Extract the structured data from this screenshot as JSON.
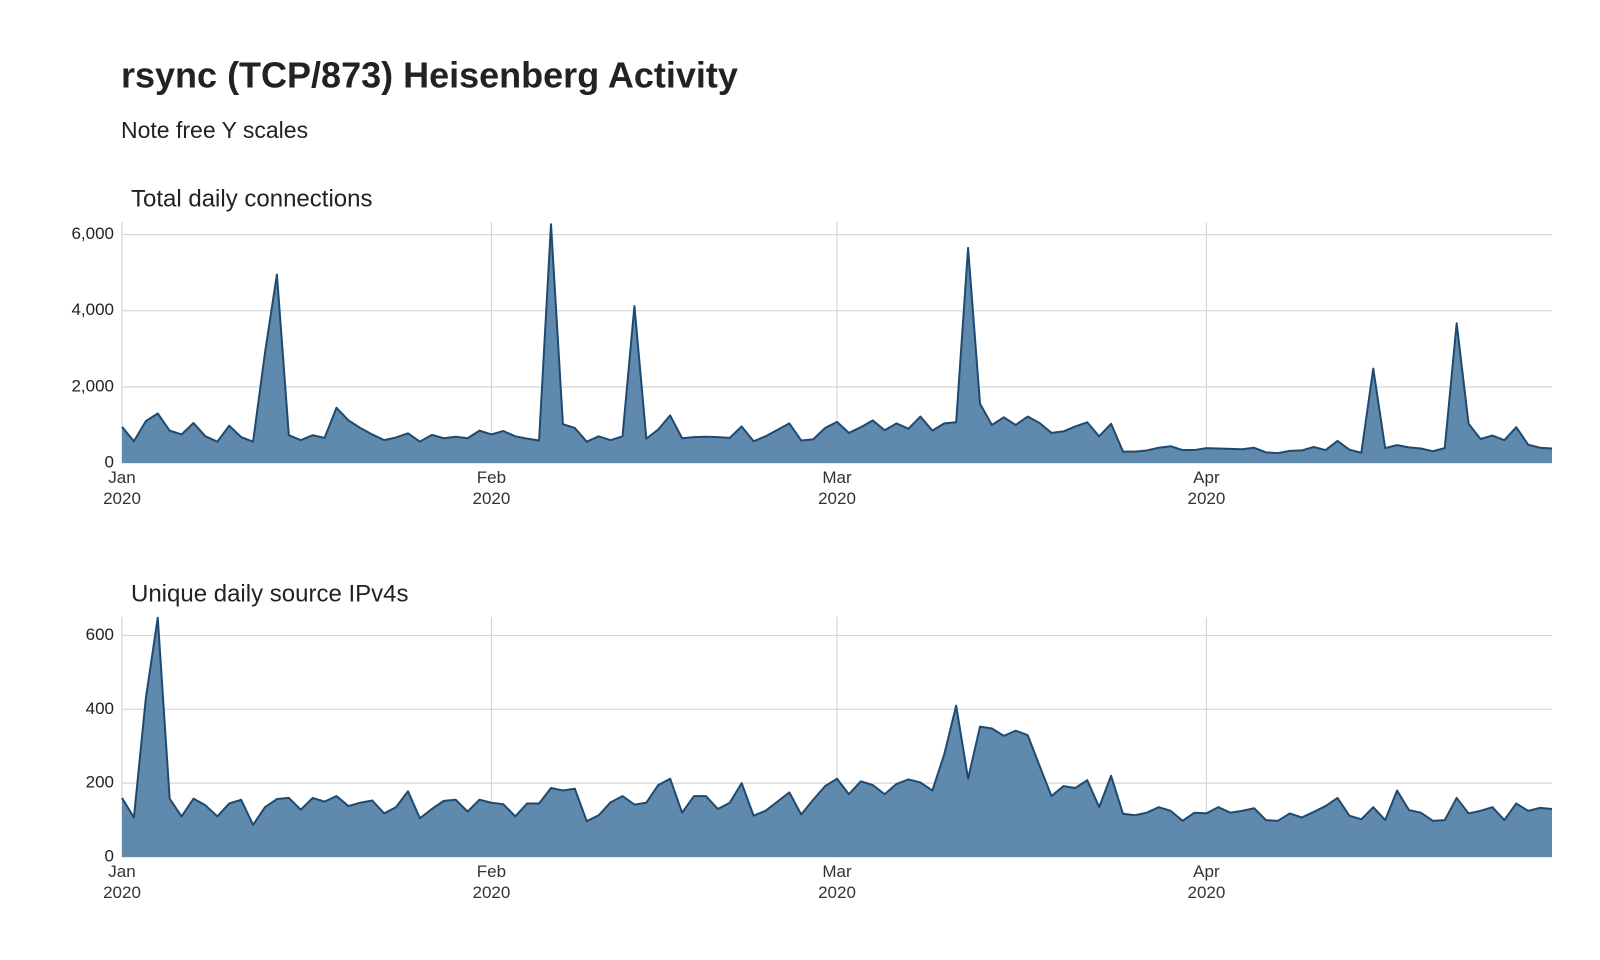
{
  "title": "rsync (TCP/873) Heisenberg Activity",
  "subtitle": "Note free Y scales",
  "chart_data": [
    {
      "type": "area",
      "title": "Total daily connections",
      "x": [
        0,
        1,
        2,
        3,
        4,
        5,
        6,
        7,
        8,
        9,
        10,
        11,
        12,
        13,
        14,
        15,
        16,
        17,
        18,
        19,
        20,
        21,
        22,
        23,
        24,
        25,
        26,
        27,
        28,
        29,
        30,
        31,
        32,
        33,
        34,
        35,
        36,
        37,
        38,
        39,
        40,
        41,
        42,
        43,
        44,
        45,
        46,
        47,
        48,
        49,
        50,
        51,
        52,
        53,
        54,
        55,
        56,
        57,
        58,
        59,
        60,
        61,
        62,
        63,
        64,
        65,
        66,
        67,
        68,
        69,
        70,
        71,
        72,
        73,
        74,
        75,
        76,
        77,
        78,
        79,
        80,
        81,
        82,
        83,
        84,
        85,
        86,
        87,
        88,
        89,
        90,
        91,
        92,
        93,
        94,
        95,
        96,
        97,
        98,
        99,
        100,
        101,
        102,
        103,
        104,
        105,
        106,
        107,
        108,
        109,
        110,
        111,
        112,
        113,
        114,
        115,
        116,
        117,
        118,
        119,
        120
      ],
      "values": [
        950,
        570,
        1100,
        1300,
        850,
        750,
        1050,
        700,
        560,
        980,
        680,
        560,
        2900,
        4950,
        730,
        600,
        730,
        660,
        1450,
        1120,
        920,
        750,
        600,
        670,
        780,
        560,
        740,
        650,
        690,
        650,
        850,
        750,
        840,
        700,
        640,
        590,
        6270,
        1020,
        920,
        560,
        700,
        600,
        700,
        4120,
        640,
        880,
        1250,
        650,
        680,
        690,
        680,
        660,
        960,
        570,
        700,
        870,
        1040,
        590,
        620,
        920,
        1080,
        790,
        940,
        1120,
        860,
        1040,
        900,
        1220,
        850,
        1040,
        1070,
        5650,
        1560,
        1000,
        1200,
        1000,
        1220,
        1050,
        790,
        830,
        960,
        1070,
        700,
        1030,
        300,
        300,
        330,
        400,
        440,
        340,
        340,
        390,
        380,
        370,
        360,
        400,
        280,
        260,
        320,
        330,
        420,
        340,
        580,
        350,
        270,
        2480,
        390,
        470,
        410,
        380,
        310,
        390,
        3670,
        1030,
        630,
        720,
        600,
        940,
        480,
        400,
        380
      ],
      "color": "#5a86aa",
      "line_color": "#1e4a70",
      "xlim": [
        0,
        120
      ],
      "xticks": [
        {
          "value": 0,
          "label": "Jan\n2020"
        },
        {
          "value": 31,
          "label": "Feb\n2020"
        },
        {
          "value": 60,
          "label": "Mar\n2020"
        },
        {
          "value": 91,
          "label": "Apr\n2020"
        }
      ],
      "ylim": [
        0,
        6330
      ],
      "yticks": [
        0,
        {
          "value": 2000,
          "label": "2,000"
        },
        {
          "value": 4000,
          "label": "4,000"
        },
        {
          "value": 6000,
          "label": "6,000"
        }
      ],
      "grid": true
    },
    {
      "type": "area",
      "title": "Unique daily source IPv4s",
      "x": [
        0,
        1,
        2,
        3,
        4,
        5,
        6,
        7,
        8,
        9,
        10,
        11,
        12,
        13,
        14,
        15,
        16,
        17,
        18,
        19,
        20,
        21,
        22,
        23,
        24,
        25,
        26,
        27,
        28,
        29,
        30,
        31,
        32,
        33,
        34,
        35,
        36,
        37,
        38,
        39,
        40,
        41,
        42,
        43,
        44,
        45,
        46,
        47,
        48,
        49,
        50,
        51,
        52,
        53,
        54,
        55,
        56,
        57,
        58,
        59,
        60,
        61,
        62,
        63,
        64,
        65,
        66,
        67,
        68,
        69,
        70,
        71,
        72,
        73,
        74,
        75,
        76,
        77,
        78,
        79,
        80,
        81,
        82,
        83,
        84,
        85,
        86,
        87,
        88,
        89,
        90,
        91,
        92,
        93,
        94,
        95,
        96,
        97,
        98,
        99,
        100,
        101,
        102,
        103,
        104,
        105,
        106,
        107,
        108,
        109,
        110,
        111,
        112,
        113,
        114,
        115,
        116,
        117,
        118,
        119,
        120
      ],
      "values": [
        160,
        107,
        430,
        648,
        158,
        110,
        158,
        140,
        110,
        145,
        155,
        87,
        135,
        157,
        160,
        128,
        160,
        150,
        165,
        138,
        147,
        153,
        118,
        135,
        178,
        105,
        130,
        152,
        155,
        123,
        155,
        147,
        143,
        110,
        145,
        145,
        187,
        180,
        185,
        97,
        113,
        148,
        165,
        142,
        147,
        195,
        212,
        120,
        165,
        165,
        130,
        147,
        200,
        112,
        125,
        150,
        175,
        115,
        155,
        192,
        212,
        170,
        205,
        195,
        170,
        198,
        210,
        202,
        180,
        278,
        410,
        212,
        353,
        348,
        328,
        342,
        330,
        247,
        165,
        192,
        187,
        208,
        135,
        220,
        117,
        113,
        120,
        135,
        125,
        98,
        120,
        118,
        135,
        120,
        125,
        132,
        100,
        98,
        118,
        107,
        122,
        138,
        160,
        112,
        102,
        135,
        100,
        180,
        127,
        120,
        98,
        100,
        160,
        118,
        125,
        135,
        100,
        145,
        125,
        133,
        130
      ],
      "color": "#5a86aa",
      "line_color": "#1e4a70",
      "xlim": [
        0,
        120
      ],
      "xticks": [
        {
          "value": 0,
          "label": "Jan\n2020"
        },
        {
          "value": 31,
          "label": "Feb\n2020"
        },
        {
          "value": 60,
          "label": "Mar\n2020"
        },
        {
          "value": 91,
          "label": "Apr\n2020"
        }
      ],
      "ylim": [
        0,
        650
      ],
      "yticks": [
        0,
        200,
        400,
        600
      ],
      "grid": true
    }
  ]
}
